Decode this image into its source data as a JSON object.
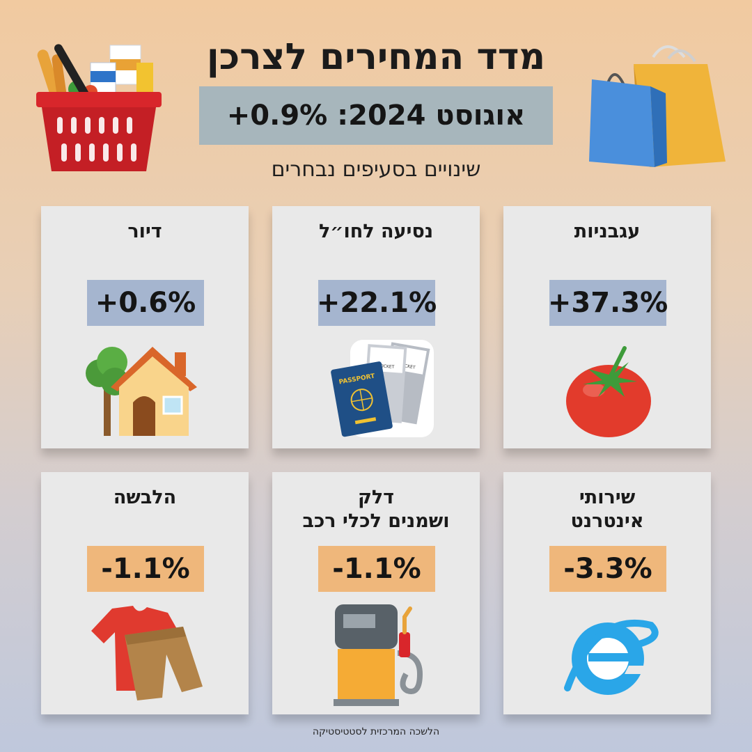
{
  "header": {
    "title": "מדד המחירים לצרכן",
    "banner": "אוגוסט 2024: 0.9%+",
    "subtitle": "שינויים בסעיפים נבחרים"
  },
  "cards": [
    {
      "label": "עגבניות",
      "value": "+37.3%",
      "direction": "up",
      "icon": "tomato-icon"
    },
    {
      "label": "נסיעה לחו״ל",
      "value": "+22.1%",
      "direction": "up",
      "icon": "passport-tickets-icon",
      "ticket_text": "AIR TICKET",
      "passport_text": "PASSPORT"
    },
    {
      "label": "דיור",
      "value": "+0.6%",
      "direction": "up",
      "icon": "house-icon"
    },
    {
      "label": "שירותי\nאינטרנט",
      "value": "-3.3%",
      "direction": "down",
      "icon": "internet-explorer-icon"
    },
    {
      "label": "דלק\nושמנים לכלי רכב",
      "value": "-1.1%",
      "direction": "down",
      "icon": "fuel-pump-icon"
    },
    {
      "label": "הלבשה",
      "value": "-1.1%",
      "direction": "down",
      "icon": "clothing-icon"
    }
  ],
  "footer": "הלשכה המרכזית לסטטיסטיקה",
  "colors": {
    "increase_badge": "#a5b5cf",
    "decrease_badge": "#efb77b",
    "banner": "#a7b6bc",
    "card": "#e9e9e9"
  }
}
